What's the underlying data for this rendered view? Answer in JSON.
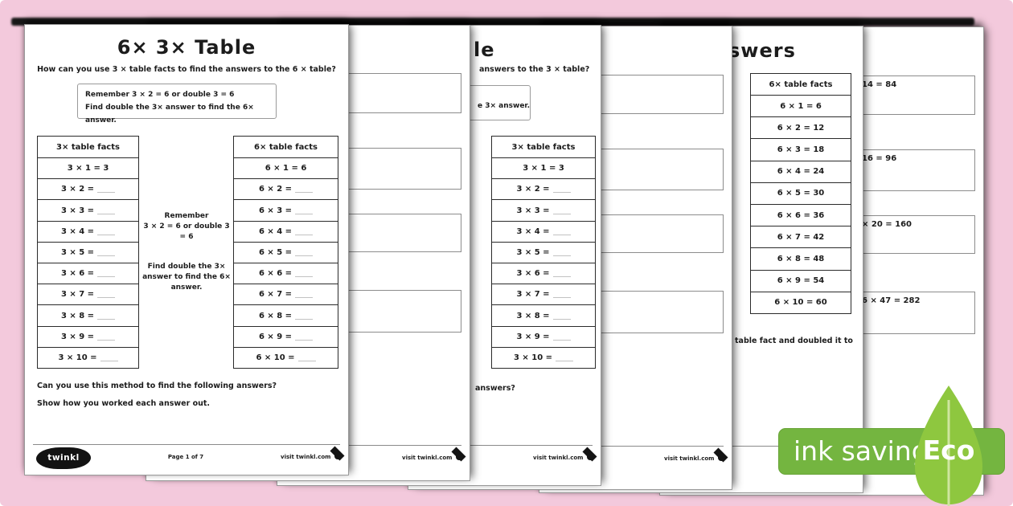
{
  "colors": {
    "frame_pink": "#f3c9dc",
    "ink": "#1c1c1c",
    "badge_green": "#74b540",
    "leaf_green": "#8ec73f"
  },
  "badge": {
    "ink_saving": "ink saving",
    "eco": "Eco"
  },
  "footer": {
    "logo": "twinkl",
    "page_info": "Page 1 of 7",
    "visit": "visit twinkl.com"
  },
  "sheet1": {
    "title": "6× 3× Table",
    "subtitle": "How can you use 3 × table facts to find the answers to the 6 × table?",
    "remember_line1": "Remember 3 × 2 = 6 or double 3 = 6",
    "remember_line2": "Find double the 3× answer to find the 6× answer.",
    "left_table": {
      "header": "3× table facts",
      "rows": [
        {
          "t": "3 × 1 = 3"
        },
        {
          "t": "3 × 2 =",
          "b": true
        },
        {
          "t": "3 × 3 =",
          "b": true
        },
        {
          "t": "3 × 4 =",
          "b": true
        },
        {
          "t": "3 × 5 =",
          "b": true
        },
        {
          "t": "3 × 6 =",
          "b": true
        },
        {
          "t": "3 × 7 =",
          "b": true
        },
        {
          "t": "3 × 8 =",
          "b": true
        },
        {
          "t": "3 × 9 =",
          "b": true
        },
        {
          "t": "3 × 10 =",
          "b": true
        }
      ]
    },
    "note_title": "Remember",
    "note_line1": "3 × 2 = 6 or double 3 = 6",
    "note_line2": "Find double the 3× answer to find the 6× answer.",
    "right_table": {
      "header": "6× table facts",
      "rows": [
        {
          "t": "6 × 1 = 6"
        },
        {
          "t": "6 × 2 =",
          "b": true
        },
        {
          "t": "6 × 3 =",
          "b": true
        },
        {
          "t": "6 × 4 =",
          "b": true
        },
        {
          "t": "6 × 5 =",
          "b": true
        },
        {
          "t": "6 × 6 =",
          "b": true
        },
        {
          "t": "6 × 7 =",
          "b": true
        },
        {
          "t": "6 × 8 =",
          "b": true
        },
        {
          "t": "6 × 9 =",
          "b": true
        },
        {
          "t": "6 × 10 =",
          "b": true
        }
      ]
    },
    "question1": "Can you use this method to find the following answers?",
    "question2": "Show how you worked each answer out."
  },
  "sheet3": {
    "title_fragment": "le",
    "subtitle_fragment": "answers to the 3 × table?",
    "box_fragment": "e 3× answer.",
    "table": {
      "header": "3× table facts",
      "rows": [
        {
          "t": "3 × 1 = 3"
        },
        {
          "t": "3 × 2 =",
          "b": true
        },
        {
          "t": "3 × 3 =",
          "b": true
        },
        {
          "t": "3 × 4 =",
          "b": true
        },
        {
          "t": "3 × 5 =",
          "b": true
        },
        {
          "t": "3 × 6 =",
          "b": true
        },
        {
          "t": "3 × 7 =",
          "b": true
        },
        {
          "t": "3 × 8 =",
          "b": true
        },
        {
          "t": "3 × 9 =",
          "b": true
        },
        {
          "t": "3 × 10 =",
          "b": true
        }
      ]
    },
    "question_fragment": "answers?"
  },
  "sheet5": {
    "title_fragment": "swers",
    "table": {
      "header": "6× table facts",
      "rows": [
        {
          "t": "6 × 1 = 6"
        },
        {
          "t": "6 × 2 = 12"
        },
        {
          "t": "6 × 3 = 18"
        },
        {
          "t": "6 × 4 = 24"
        },
        {
          "t": "6 × 5 = 30"
        },
        {
          "t": "6 × 6 = 36"
        },
        {
          "t": "6 × 7 = 42"
        },
        {
          "t": "6 × 8 = 48"
        },
        {
          "t": "6 × 9 = 54"
        },
        {
          "t": "6 × 10 = 60"
        }
      ]
    },
    "text_fragment": "table fact and doubled it to"
  },
  "sheet6": {
    "answers": [
      "14 = 84",
      "16 = 96",
      "× 20 = 160",
      "6 × 47 = 282"
    ]
  }
}
